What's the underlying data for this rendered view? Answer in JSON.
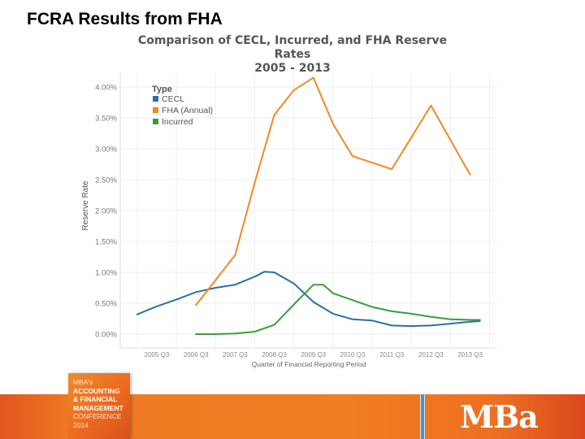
{
  "slide": {
    "title": "FCRA Results from FHA"
  },
  "chart_data": {
    "type": "line",
    "title": "Comparison of CECL, Incurred, and FHA Reserve Rates",
    "subtitle": "2005 - 2013",
    "xlabel": "Quarter of Financial Reporting Period",
    "ylabel": "Reserve Rate",
    "ylim": [
      0,
      4.2
    ],
    "yticks": [
      "0.00%",
      "0.50%",
      "1.00%",
      "1.50%",
      "2.00%",
      "2.50%",
      "3.00%",
      "3.50%",
      "4.00%"
    ],
    "xticks": [
      "2005 Q3",
      "2006 Q3",
      "2007 Q3",
      "2008 Q3",
      "2009 Q3",
      "2010 Q3",
      "2011 Q3",
      "2012 Q3",
      "2013 Q3"
    ],
    "grid": true,
    "legend": {
      "title": "Type",
      "position": "top-left inside"
    },
    "series": [
      {
        "name": "CECL",
        "color": "#2e6ea6",
        "points": [
          [
            "2005 Q1",
            0.32
          ],
          [
            "2005 Q3",
            0.45
          ],
          [
            "2006 Q1",
            0.56
          ],
          [
            "2006 Q3",
            0.68
          ],
          [
            "2007 Q1",
            0.75
          ],
          [
            "2007 Q3",
            0.8
          ],
          [
            "2008 Q1",
            0.93
          ],
          [
            "2008 Q2",
            1.01
          ],
          [
            "2008 Q3",
            1.0
          ],
          [
            "2009 Q1",
            0.82
          ],
          [
            "2009 Q3",
            0.52
          ],
          [
            "2010 Q1",
            0.33
          ],
          [
            "2010 Q3",
            0.24
          ],
          [
            "2011 Q1",
            0.22
          ],
          [
            "2011 Q3",
            0.14
          ],
          [
            "2012 Q1",
            0.13
          ],
          [
            "2012 Q3",
            0.14
          ],
          [
            "2013 Q1",
            0.17
          ],
          [
            "2013 Q3",
            0.2
          ],
          [
            "2013 Q4",
            0.21
          ]
        ]
      },
      {
        "name": "FHA (Annual)",
        "color": "#f08a24",
        "points": [
          [
            "2006 Q3",
            0.47
          ],
          [
            "2007 Q3",
            1.28
          ],
          [
            "2008 Q1",
            2.45
          ],
          [
            "2008 Q3",
            3.55
          ],
          [
            "2009 Q1",
            3.95
          ],
          [
            "2009 Q3",
            4.15
          ],
          [
            "2010 Q1",
            3.4
          ],
          [
            "2010 Q3",
            2.88
          ],
          [
            "2011 Q3",
            2.67
          ],
          [
            "2012 Q3",
            3.7
          ],
          [
            "2013 Q3",
            2.58
          ]
        ]
      },
      {
        "name": "Incurred",
        "color": "#3d9b3d",
        "points": [
          [
            "2006 Q3",
            0.0
          ],
          [
            "2007 Q1",
            0.0
          ],
          [
            "2007 Q3",
            0.01
          ],
          [
            "2008 Q1",
            0.04
          ],
          [
            "2008 Q3",
            0.15
          ],
          [
            "2009 Q1",
            0.48
          ],
          [
            "2009 Q3",
            0.8
          ],
          [
            "2009 Q4",
            0.8
          ],
          [
            "2010 Q1",
            0.66
          ],
          [
            "2010 Q3",
            0.55
          ],
          [
            "2011 Q1",
            0.44
          ],
          [
            "2011 Q3",
            0.37
          ],
          [
            "2012 Q1",
            0.33
          ],
          [
            "2012 Q3",
            0.28
          ],
          [
            "2013 Q1",
            0.24
          ],
          [
            "2013 Q3",
            0.23
          ],
          [
            "2013 Q4",
            0.23
          ]
        ]
      }
    ]
  },
  "footer": {
    "conference": {
      "line1": "MBA's",
      "line2": "ACCOUNTING",
      "line3": "& FINANCIAL",
      "line4": "MANAGEMENT",
      "line5": "CONFERENCE 2014"
    },
    "logo": "MBa",
    "band_color": "#f27d22"
  }
}
